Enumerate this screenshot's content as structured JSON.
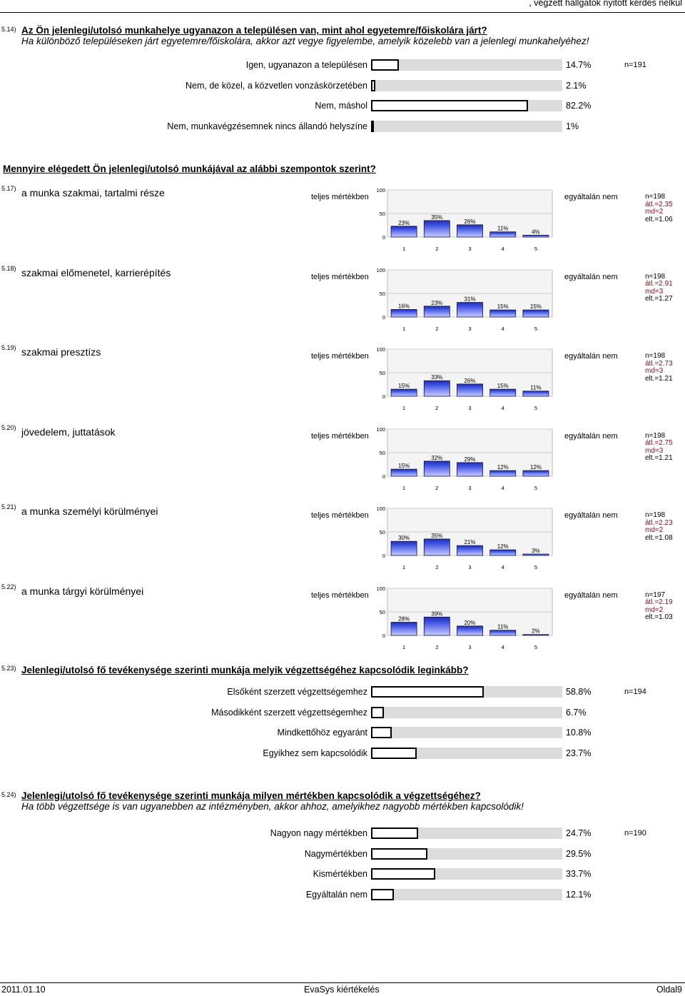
{
  "header": {
    "text": ", végzett hallgatók nyitott kérdés nélkül"
  },
  "q514": {
    "num": "5.14)",
    "title": "Az Ön jelenlegi/utolsó munkahelye ugyanazon a településen van, mint ahol egyetemre/főiskolára járt?",
    "subtitle": "Ha különböző településeken járt egyetemre/főiskolára, akkor azt vegye figyelembe, amelyik közelebb van a jelenlegi munkahelyéhez!",
    "n": "n=191",
    "options": [
      {
        "label": "Igen, ugyanazon a településen",
        "pct": "14.7%",
        "value": 14.7
      },
      {
        "label": "Nem, de közel, a közvetlen vonzáskörzetében",
        "pct": "2.1%",
        "value": 2.1
      },
      {
        "label": "Nem, máshol",
        "pct": "82.2%",
        "value": 82.2
      },
      {
        "label": "Nem, munkavégzésemnek nincs állandó helyszíne",
        "pct": "1%",
        "value": 1
      }
    ]
  },
  "section": {
    "title": "Mennyire elégedett Ön jelenlegi/utolsó munkájával az alábbi szempontok szerint?"
  },
  "scale": {
    "left": "teljes mértékben",
    "right": "egyáltalán nem",
    "xticks": [
      "1",
      "2",
      "3",
      "4",
      "5"
    ],
    "yticks": [
      "100",
      "50",
      "0"
    ]
  },
  "items": [
    {
      "num": "5.17)",
      "label": "a munka szakmai, tartalmi része",
      "values": [
        23,
        35,
        26,
        11,
        4
      ],
      "labels": [
        "23%",
        "35%",
        "26%",
        "11%",
        "4%"
      ],
      "n": "n=198",
      "atl": "átl.=2.35",
      "md": "md=2",
      "elt": "elt.=1.06"
    },
    {
      "num": "5.18)",
      "label": "szakmai előmenetel, karrierépítés",
      "values": [
        16,
        23,
        31,
        15,
        15
      ],
      "labels": [
        "16%",
        "23%",
        "31%",
        "15%",
        "15%"
      ],
      "n": "n=198",
      "atl": "átl.=2.91",
      "md": "md=3",
      "elt": "elt.=1.27"
    },
    {
      "num": "5.19)",
      "label": "szakmai presztízs",
      "values": [
        15,
        33,
        26,
        15,
        11
      ],
      "labels": [
        "15%",
        "33%",
        "26%",
        "15%",
        "11%"
      ],
      "n": "n=198",
      "atl": "átl.=2.73",
      "md": "md=3",
      "elt": "elt.=1.21"
    },
    {
      "num": "5.20)",
      "label": "jövedelem, juttatások",
      "values": [
        15,
        32,
        29,
        12,
        12
      ],
      "labels": [
        "15%",
        "32%",
        "29%",
        "12%",
        "12%"
      ],
      "n": "n=198",
      "atl": "átl.=2.75",
      "md": "md=3",
      "elt": "elt.=1.21"
    },
    {
      "num": "5.21)",
      "label": "a munka személyi körülményei",
      "values": [
        30,
        35,
        21,
        12,
        3
      ],
      "labels": [
        "30%",
        "35%",
        "21%",
        "12%",
        "3%"
      ],
      "n": "n=198",
      "atl": "átl.=2.23",
      "md": "md=2",
      "elt": "elt.=1.08"
    },
    {
      "num": "5.22)",
      "label": "a munka tárgyi körülményei",
      "values": [
        28,
        39,
        20,
        11,
        2
      ],
      "labels": [
        "28%",
        "39%",
        "20%",
        "11%",
        "2%"
      ],
      "n": "n=197",
      "atl": "átl.=2.19",
      "md": "md=2",
      "elt": "elt.=1.03"
    }
  ],
  "q523": {
    "num": "5.23)",
    "title": "Jelenlegi/utolsó fő tevékenysége szerinti munkája melyik végzettségéhez kapcsolódik leginkább?",
    "n": "n=194",
    "options": [
      {
        "label": "Elsőként szerzett végzettségemhez",
        "pct": "58.8%",
        "value": 58.8
      },
      {
        "label": "Másodikként szerzett végzettségemhez",
        "pct": "6.7%",
        "value": 6.7
      },
      {
        "label": "Mindkettőhöz egyaránt",
        "pct": "10.8%",
        "value": 10.8
      },
      {
        "label": "Egyikhez sem kapcsolódik",
        "pct": "23.7%",
        "value": 23.7
      }
    ]
  },
  "q524": {
    "num": "5.24)",
    "title": "Jelenlegi/utolsó fő tevékenysége szerinti munkája milyen mértékben kapcsolódik a végzettségéhez?",
    "subtitle": "Ha több végzettsége is van ugyanebben az intézményben, akkor ahhoz, amelyikhez nagyobb mértékben kapcsolódik!",
    "n": "n=190",
    "options": [
      {
        "label": "Nagyon nagy mértékben",
        "pct": "24.7%",
        "value": 24.7
      },
      {
        "label": "Nagymértékben",
        "pct": "29.5%",
        "value": 29.5
      },
      {
        "label": "Kismértékben",
        "pct": "33.7%",
        "value": 33.7
      },
      {
        "label": "Egyáltalán nem",
        "pct": "12.1%",
        "value": 12.1
      }
    ]
  },
  "footer": {
    "date": "2011.01.10",
    "center": "EvaSys kiértékelés",
    "page": "Oldal9"
  },
  "chart_data": [
    {
      "type": "bar",
      "title": "a munka szakmai, tartalmi része",
      "categories": [
        "1",
        "2",
        "3",
        "4",
        "5"
      ],
      "values": [
        23,
        35,
        26,
        11,
        4
      ],
      "ylim": [
        0,
        100
      ]
    },
    {
      "type": "bar",
      "title": "szakmai előmenetel, karrierépítés",
      "categories": [
        "1",
        "2",
        "3",
        "4",
        "5"
      ],
      "values": [
        16,
        23,
        31,
        15,
        15
      ],
      "ylim": [
        0,
        100
      ]
    },
    {
      "type": "bar",
      "title": "szakmai presztízs",
      "categories": [
        "1",
        "2",
        "3",
        "4",
        "5"
      ],
      "values": [
        15,
        33,
        26,
        15,
        11
      ],
      "ylim": [
        0,
        100
      ]
    },
    {
      "type": "bar",
      "title": "jövedelem, juttatások",
      "categories": [
        "1",
        "2",
        "3",
        "4",
        "5"
      ],
      "values": [
        15,
        32,
        29,
        12,
        12
      ],
      "ylim": [
        0,
        100
      ]
    },
    {
      "type": "bar",
      "title": "a munka személyi körülményei",
      "categories": [
        "1",
        "2",
        "3",
        "4",
        "5"
      ],
      "values": [
        30,
        35,
        21,
        12,
        3
      ],
      "ylim": [
        0,
        100
      ]
    },
    {
      "type": "bar",
      "title": "a munka tárgyi körülményei",
      "categories": [
        "1",
        "2",
        "3",
        "4",
        "5"
      ],
      "values": [
        28,
        39,
        20,
        11,
        2
      ],
      "ylim": [
        0,
        100
      ]
    }
  ]
}
